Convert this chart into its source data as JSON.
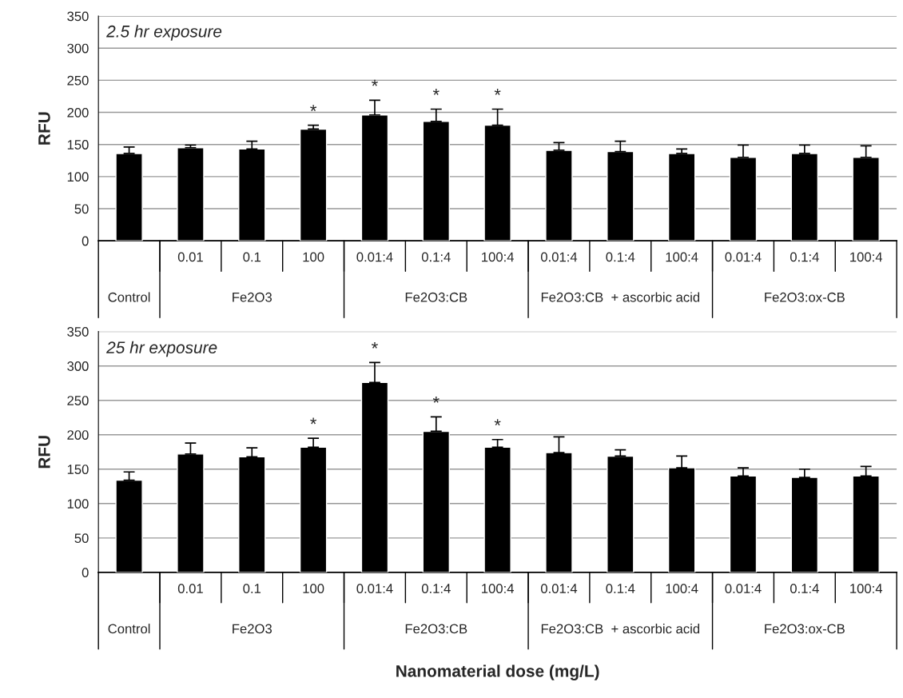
{
  "chart_data": [
    {
      "type": "bar",
      "ylabel": "RFU",
      "categories": [
        null,
        "0.01",
        "0.1",
        "100",
        "0.01:4",
        "0.1:4",
        "100:4",
        "0.01:4",
        "0.1:4",
        "100:4",
        "0.01:4",
        "0.1:4",
        "100:4"
      ],
      "values": [
        136,
        145,
        143,
        174,
        196,
        186,
        180,
        141,
        139,
        136,
        130,
        136,
        130
      ],
      "errors": [
        [
          136,
          146
        ],
        [
          145,
          149
        ],
        [
          143,
          155
        ],
        [
          174,
          180
        ],
        [
          196,
          219
        ],
        [
          186,
          205
        ],
        [
          180,
          205
        ],
        [
          141,
          153
        ],
        [
          139,
          155
        ],
        [
          136,
          143
        ],
        [
          130,
          149
        ],
        [
          136,
          149
        ],
        [
          130,
          148
        ]
      ],
      "value_labels": [
        null,
        null,
        null,
        "*",
        "*",
        "*",
        "*",
        null,
        null,
        null,
        null,
        null,
        null
      ],
      "color": "#000000",
      "ylim": [
        0,
        350
      ],
      "yticks": [
        0,
        50,
        100,
        150,
        200,
        250,
        300,
        350
      ],
      "grid": "y",
      "annotations": [
        "2.5 hr exposure",
        "Control",
        "Fe2O3",
        "Fe2O3:CB",
        "Fe2O3:CB  + ascorbic acid",
        "Fe2O3:ox-CB"
      ]
    },
    {
      "type": "bar",
      "ylabel": "RFU",
      "xlabel": "Nanomaterial dose (mg/L)",
      "categories": [
        null,
        "0.01",
        "0.1",
        "100",
        "0.01:4",
        "0.1:4",
        "100:4",
        "0.01:4",
        "0.1:4",
        "100:4",
        "0.01:4",
        "0.1:4",
        "100:4"
      ],
      "values": [
        134,
        172,
        168,
        182,
        276,
        205,
        182,
        174,
        169,
        152,
        140,
        138,
        140
      ],
      "errors": [
        [
          134,
          146
        ],
        [
          172,
          188
        ],
        [
          168,
          181
        ],
        [
          182,
          195
        ],
        [
          276,
          305
        ],
        [
          205,
          226
        ],
        [
          182,
          193
        ],
        [
          174,
          197
        ],
        [
          169,
          178
        ],
        [
          152,
          169
        ],
        [
          140,
          152
        ],
        [
          138,
          150
        ],
        [
          140,
          154
        ]
      ],
      "value_labels": [
        null,
        null,
        null,
        "*",
        "*",
        "*",
        "*",
        null,
        null,
        null,
        null,
        null,
        null
      ],
      "color": "#000000",
      "ylim": [
        0,
        350
      ],
      "yticks": [
        0,
        50,
        100,
        150,
        200,
        250,
        300,
        350
      ],
      "grid": "y",
      "annotations": [
        "25 hr exposure",
        "Control",
        "Fe2O3",
        "Fe2O3:CB",
        "Fe2O3:CB  + ascorbic acid",
        "Fe2O3:ox-CB"
      ]
    }
  ]
}
